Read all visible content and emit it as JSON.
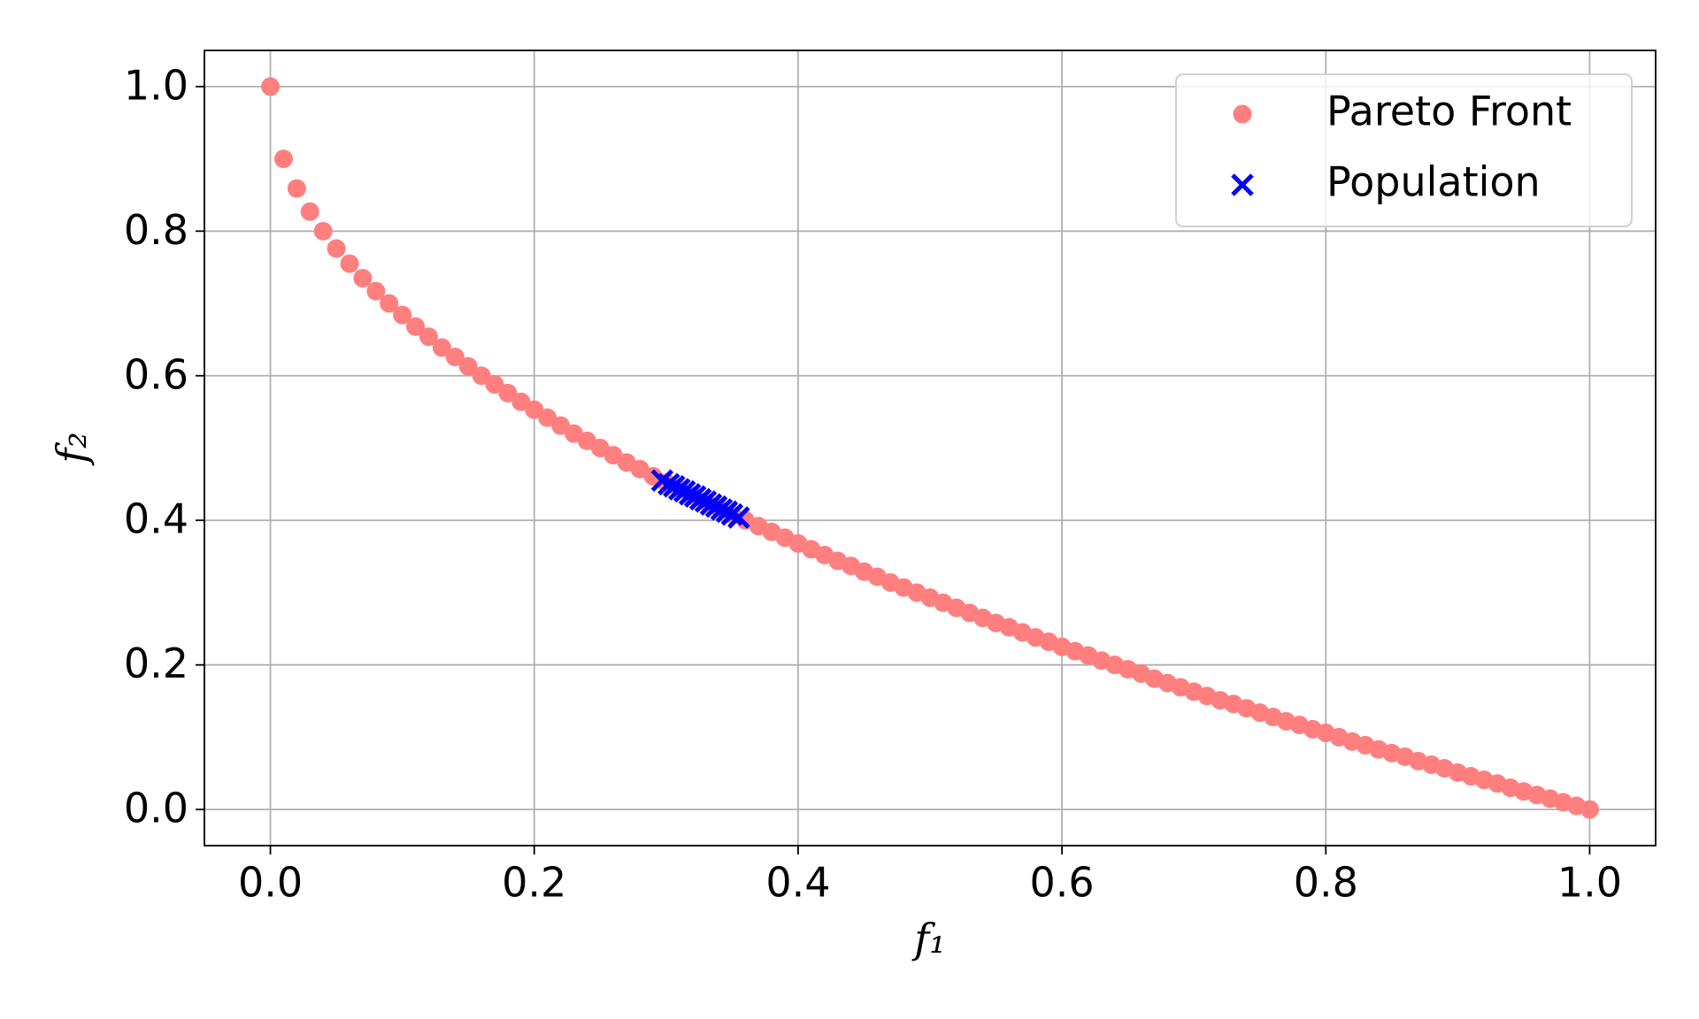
{
  "chart_data": {
    "type": "scatter",
    "xlabel": "f₁",
    "ylabel": "f₂",
    "xlim": [
      -0.05,
      1.05
    ],
    "ylim": [
      -0.05,
      1.05
    ],
    "xticks": [
      {
        "value": 0,
        "label": "0.0"
      },
      0.2,
      0.4,
      0.6,
      0.8,
      {
        "value": 1,
        "label": "1.0"
      }
    ],
    "yticks": [
      {
        "value": 0,
        "label": "0.0"
      },
      0.2,
      0.4,
      0.6,
      0.8,
      {
        "value": 1,
        "label": "1.0"
      }
    ],
    "grid": true,
    "legend": "upper right",
    "series": [
      {
        "name": "Pareto Front",
        "color": "#ff7f7f",
        "marker": "circle",
        "x": [
          0,
          0.01,
          0.02,
          0.03,
          0.04,
          0.05,
          0.06,
          0.07,
          0.08,
          0.09,
          0.1,
          0.11,
          0.12,
          0.13,
          0.14,
          0.15,
          0.16,
          0.17,
          0.18,
          0.19,
          0.2,
          0.21,
          0.22,
          0.23,
          0.24,
          0.25,
          0.26,
          0.27,
          0.28,
          0.29,
          0.3,
          0.31,
          0.32,
          0.33,
          0.34,
          0.35,
          0.36,
          0.37,
          0.38,
          0.39,
          0.4,
          0.41,
          0.42,
          0.43,
          0.44,
          0.45,
          0.46,
          0.47,
          0.48,
          0.49,
          0.5,
          0.51,
          0.52,
          0.53,
          0.54,
          0.55,
          0.56,
          0.57,
          0.58,
          0.59,
          0.6,
          0.61,
          0.62,
          0.63,
          0.64,
          0.65,
          0.66,
          0.67,
          0.68,
          0.69,
          0.7,
          0.71,
          0.72,
          0.73,
          0.74,
          0.75,
          0.76,
          0.77,
          0.78,
          0.79,
          0.8,
          0.81,
          0.82,
          0.83,
          0.84,
          0.85,
          0.86,
          0.87,
          0.88,
          0.89,
          0.9,
          0.91,
          0.92,
          0.93,
          0.94,
          0.95,
          0.96,
          0.97,
          0.98,
          0.99,
          1
        ],
        "values": [
          1,
          0.9,
          0.859,
          0.827,
          0.8,
          0.776,
          0.755,
          0.735,
          0.717,
          0.7,
          0.684,
          0.668,
          0.654,
          0.639,
          0.626,
          0.613,
          0.6,
          0.588,
          0.576,
          0.564,
          0.553,
          0.542,
          0.531,
          0.52,
          0.51,
          0.5,
          0.49,
          0.48,
          0.471,
          0.461,
          0.452,
          0.443,
          0.434,
          0.426,
          0.417,
          0.408,
          0.4,
          0.392,
          0.384,
          0.376,
          0.368,
          0.36,
          0.352,
          0.344,
          0.337,
          0.329,
          0.322,
          0.314,
          0.307,
          0.3,
          0.293,
          0.286,
          0.279,
          0.272,
          0.265,
          0.258,
          0.252,
          0.245,
          0.238,
          0.232,
          0.225,
          0.219,
          0.213,
          0.206,
          0.2,
          0.194,
          0.188,
          0.181,
          0.175,
          0.169,
          0.163,
          0.157,
          0.151,
          0.146,
          0.14,
          0.134,
          0.128,
          0.122,
          0.117,
          0.111,
          0.106,
          0.1,
          0.094,
          0.089,
          0.083,
          0.078,
          0.073,
          0.067,
          0.062,
          0.057,
          0.051,
          0.046,
          0.041,
          0.036,
          0.03,
          0.025,
          0.02,
          0.015,
          0.01,
          0.005,
          0
        ]
      },
      {
        "name": "Population",
        "color": "#0000ff",
        "marker": "x",
        "x": [
          0.297,
          0.302,
          0.306,
          0.31,
          0.314,
          0.318,
          0.322,
          0.326,
          0.33,
          0.334,
          0.338,
          0.342,
          0.346,
          0.35,
          0.355
        ],
        "values": [
          0.455,
          0.45,
          0.447,
          0.443,
          0.44,
          0.436,
          0.433,
          0.429,
          0.426,
          0.422,
          0.419,
          0.415,
          0.412,
          0.408,
          0.404
        ]
      }
    ]
  }
}
